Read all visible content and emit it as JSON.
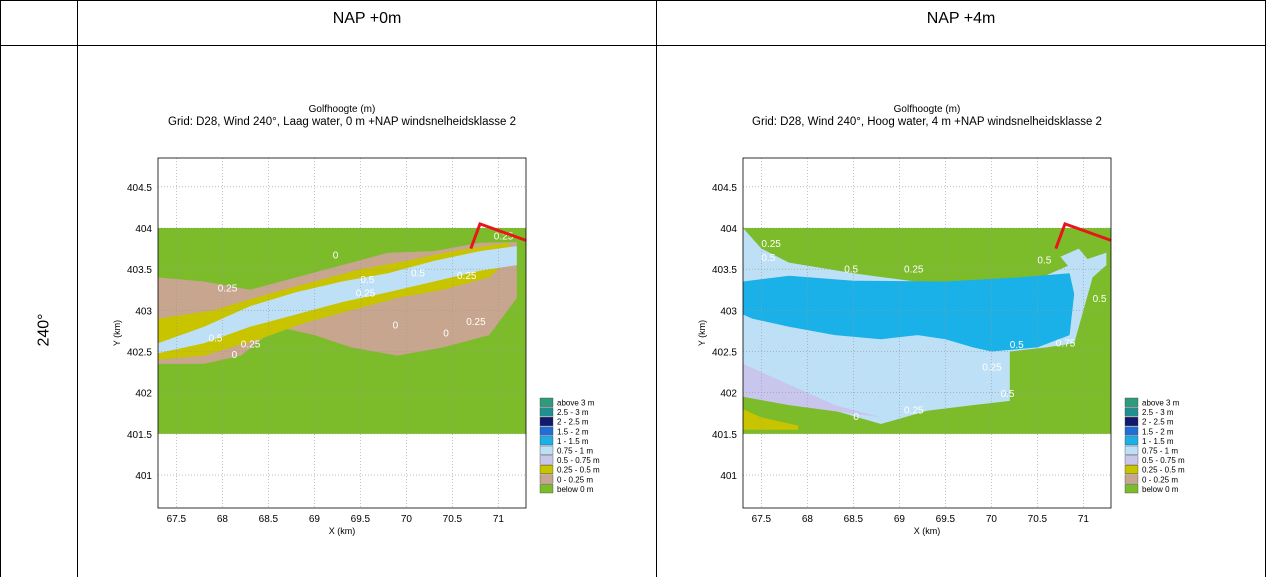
{
  "table": {
    "col_headers": [
      "NAP +0m",
      "NAP +4m"
    ],
    "row_label": "240°"
  },
  "legend": [
    "above 3 m",
    "2.5 - 3 m",
    "2 - 2.5 m",
    "1.5 - 2 m",
    "1 - 1.5 m",
    "0.75 - 1 m",
    "0.5 - 0.75 m",
    "0.25 - 0.5 m",
    "0 - 0.25 m",
    "below 0 m"
  ],
  "legend_colors": [
    "#2e9a7e",
    "#1f8f8f",
    "#101a6e",
    "#1f6fd6",
    "#1ab0e8",
    "#bde0f6",
    "#c8c6ec",
    "#c8c400",
    "#c7a58e",
    "#7cbc2a"
  ],
  "chart_data": [
    {
      "type": "heatmap",
      "title": "Golfhoogte (m)",
      "subtitle": "Grid: D28, Wind 240°, Laag water, 0 m +NAP windsnelheidsklasse 2",
      "xlabel": "X (km)",
      "ylabel": "Y (km)",
      "xlim": [
        67.3,
        71.3
      ],
      "ylim": [
        400.6,
        404.85
      ],
      "xticks": [
        "67.5",
        "68",
        "68.5",
        "69",
        "69.5",
        "70",
        "70.5",
        "71"
      ],
      "yticks": [
        "401",
        "401.5",
        "402",
        "402.5",
        "403",
        "403.5",
        "404",
        "404.5"
      ],
      "contour_labels": [
        {
          "text": "0.25",
          "x": 67.95,
          "y": 403.23
        },
        {
          "text": "0.5",
          "x": 67.85,
          "y": 402.62
        },
        {
          "text": "0.25",
          "x": 68.2,
          "y": 402.55
        },
        {
          "text": "0",
          "x": 68.1,
          "y": 402.42
        },
        {
          "text": "0.5",
          "x": 69.5,
          "y": 403.33
        },
        {
          "text": "0.25",
          "x": 69.45,
          "y": 403.17
        },
        {
          "text": "0.5",
          "x": 70.05,
          "y": 403.41
        },
        {
          "text": "0.25",
          "x": 70.55,
          "y": 403.38
        },
        {
          "text": "0.25",
          "x": 70.65,
          "y": 402.82
        },
        {
          "text": "0",
          "x": 70.4,
          "y": 402.68
        },
        {
          "text": "0",
          "x": 69.85,
          "y": 402.78
        },
        {
          "text": "0",
          "x": 69.2,
          "y": 403.63
        },
        {
          "text": "0.25",
          "x": 70.95,
          "y": 403.86
        }
      ]
    },
    {
      "type": "heatmap",
      "title": "Golfhoogte (m)",
      "subtitle": "Grid: D28, Wind 240°, Hoog water, 4 m +NAP windsnelheidsklasse 2",
      "xlabel": "X (km)",
      "ylabel": "Y (km)",
      "xlim": [
        67.3,
        71.3
      ],
      "ylim": [
        400.6,
        404.85
      ],
      "xticks": [
        "67.5",
        "68",
        "68.5",
        "69",
        "69.5",
        "70",
        "70.5",
        "71"
      ],
      "yticks": [
        "401",
        "401.5",
        "402",
        "402.5",
        "403",
        "403.5",
        "404",
        "404.5"
      ],
      "contour_labels": [
        {
          "text": "0.25",
          "x": 67.5,
          "y": 403.77
        },
        {
          "text": "0.5",
          "x": 67.5,
          "y": 403.6
        },
        {
          "text": "0.5",
          "x": 68.4,
          "y": 403.46
        },
        {
          "text": "0.25",
          "x": 69.05,
          "y": 403.46
        },
        {
          "text": "0.5",
          "x": 70.5,
          "y": 403.57
        },
        {
          "text": "0.5",
          "x": 70.2,
          "y": 402.54
        },
        {
          "text": "0.75",
          "x": 70.7,
          "y": 402.56
        },
        {
          "text": "0.25",
          "x": 69.9,
          "y": 402.27
        },
        {
          "text": "0.25",
          "x": 69.05,
          "y": 401.75
        },
        {
          "text": "0",
          "x": 68.5,
          "y": 401.67
        },
        {
          "text": "0.5",
          "x": 71.1,
          "y": 403.1
        },
        {
          "text": "0.5",
          "x": 70.1,
          "y": 401.95
        }
      ]
    }
  ]
}
